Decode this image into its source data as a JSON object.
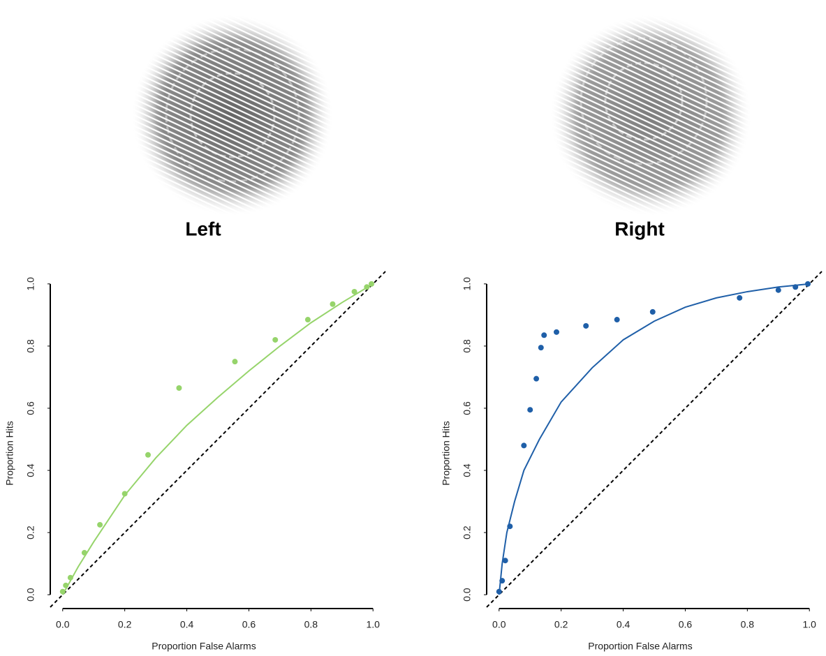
{
  "chart_data": [
    {
      "type": "scatter",
      "title": "Left",
      "xlabel": "Proportion False Alarms",
      "ylabel": "Proportion Hits",
      "xlim": [
        -0.04,
        1.04
      ],
      "ylim": [
        -0.04,
        1.04
      ],
      "xticks": [
        {
          "value": 0,
          "label": "0.0"
        },
        {
          "value": 0.2,
          "label": "0.2"
        },
        {
          "value": 0.4,
          "label": "0.4"
        },
        {
          "value": 0.6,
          "label": "0.6"
        },
        {
          "value": 0.8,
          "label": "0.8"
        },
        {
          "value": 1,
          "label": "1.0"
        }
      ],
      "yticks": [
        {
          "value": 0,
          "label": "0.0"
        },
        {
          "value": 0.2,
          "label": "0.2"
        },
        {
          "value": 0.4,
          "label": "0.4"
        },
        {
          "value": 0.6,
          "label": "0.6"
        },
        {
          "value": 0.8,
          "label": "0.8"
        },
        {
          "value": 1,
          "label": "1.0"
        }
      ],
      "diagonal": true,
      "series": [
        {
          "style": "points",
          "color": "#96d46b",
          "x": [
            0,
            0.01,
            0.025,
            0.07,
            0.12,
            0.2,
            0.275,
            0.375,
            0.555,
            0.685,
            0.79,
            0.87,
            0.94,
            0.98,
            0.995
          ],
          "values": [
            0.01,
            0.03,
            0.055,
            0.135,
            0.225,
            0.325,
            0.45,
            0.665,
            0.75,
            0.82,
            0.885,
            0.935,
            0.975,
            0.99,
            1.0
          ]
        },
        {
          "style": "line",
          "color": "#96d46b",
          "x": [
            0,
            0.05,
            0.1,
            0.2,
            0.3,
            0.4,
            0.5,
            0.6,
            0.7,
            0.8,
            0.9,
            1.0
          ],
          "values": [
            0,
            0.09,
            0.17,
            0.32,
            0.44,
            0.545,
            0.635,
            0.72,
            0.8,
            0.875,
            0.94,
            1.0
          ]
        }
      ]
    },
    {
      "type": "scatter",
      "title": "Right",
      "xlabel": "Proportion False Alarms",
      "ylabel": "Proportion Hits",
      "xlim": [
        -0.04,
        1.04
      ],
      "ylim": [
        -0.04,
        1.04
      ],
      "xticks": [
        {
          "value": 0,
          "label": "0.0"
        },
        {
          "value": 0.2,
          "label": "0.2"
        },
        {
          "value": 0.4,
          "label": "0.4"
        },
        {
          "value": 0.6,
          "label": "0.6"
        },
        {
          "value": 0.8,
          "label": "0.8"
        },
        {
          "value": 1,
          "label": "1.0"
        }
      ],
      "yticks": [
        {
          "value": 0,
          "label": "0.0"
        },
        {
          "value": 0.2,
          "label": "0.2"
        },
        {
          "value": 0.4,
          "label": "0.4"
        },
        {
          "value": 0.6,
          "label": "0.6"
        },
        {
          "value": 0.8,
          "label": "0.8"
        },
        {
          "value": 1,
          "label": "1.0"
        }
      ],
      "diagonal": true,
      "series": [
        {
          "style": "points",
          "color": "#1f5fa8",
          "x": [
            0,
            0.01,
            0.02,
            0.035,
            0.08,
            0.1,
            0.12,
            0.135,
            0.145,
            0.185,
            0.28,
            0.38,
            0.495,
            0.775,
            0.9,
            0.955,
            0.995
          ],
          "values": [
            0.01,
            0.045,
            0.11,
            0.22,
            0.48,
            0.595,
            0.695,
            0.795,
            0.835,
            0.845,
            0.865,
            0.885,
            0.91,
            0.955,
            0.98,
            0.99,
            1.0
          ]
        },
        {
          "style": "line",
          "color": "#1f5fa8",
          "x": [
            0,
            0.01,
            0.025,
            0.05,
            0.08,
            0.13,
            0.2,
            0.3,
            0.4,
            0.5,
            0.6,
            0.7,
            0.8,
            0.9,
            1.0
          ],
          "values": [
            0,
            0.1,
            0.2,
            0.3,
            0.4,
            0.5,
            0.62,
            0.73,
            0.82,
            0.88,
            0.925,
            0.955,
            0.975,
            0.99,
            1.0
          ]
        }
      ]
    }
  ]
}
